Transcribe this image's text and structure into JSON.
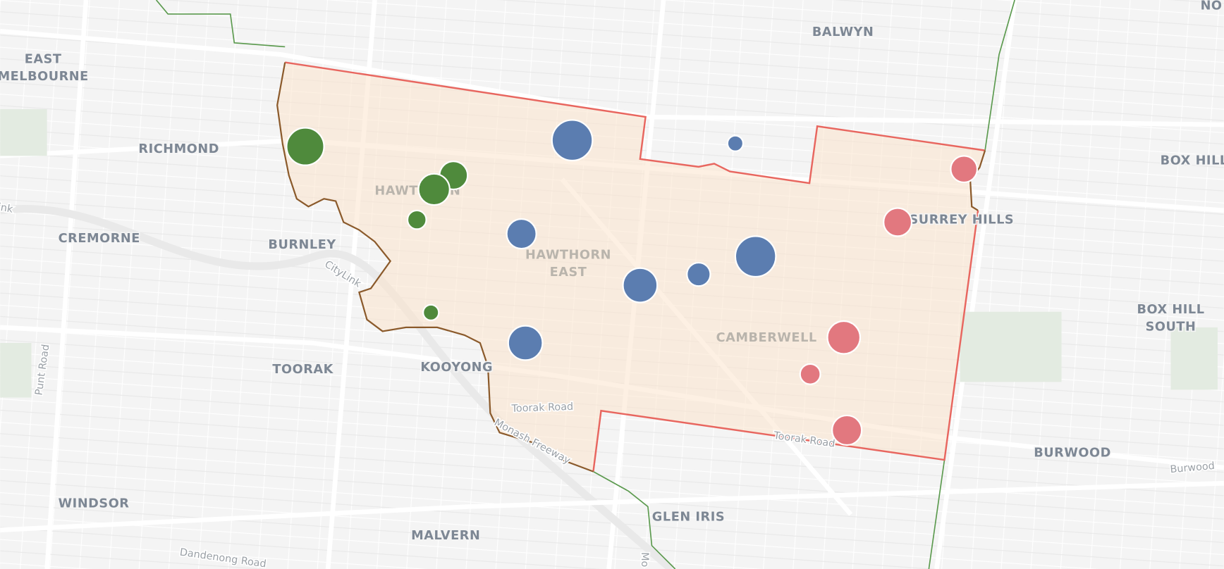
{
  "place_labels": [
    "BALWYN",
    "EAST",
    "MELBOURNE",
    "RICHMOND",
    "BOX HILL",
    "NO",
    "HAWTHORN",
    "SURREY HILLS",
    "CREMORNE",
    "BURNLEY",
    "HAWTHORN",
    "EAST",
    "BOX HILL",
    "SOUTH",
    "CAMBERWELL",
    "TOORAK",
    "KOOYONG",
    "BURWOOD",
    "WINDSOR",
    "GLEN IRIS",
    "MALVERN"
  ],
  "road_labels": [
    "CityLink",
    "Punt Road",
    "Toorak Road",
    "Toorak Road",
    "Monash Freeway",
    "Burwood",
    "Dandenong Road",
    "ink",
    "Mo"
  ]
}
